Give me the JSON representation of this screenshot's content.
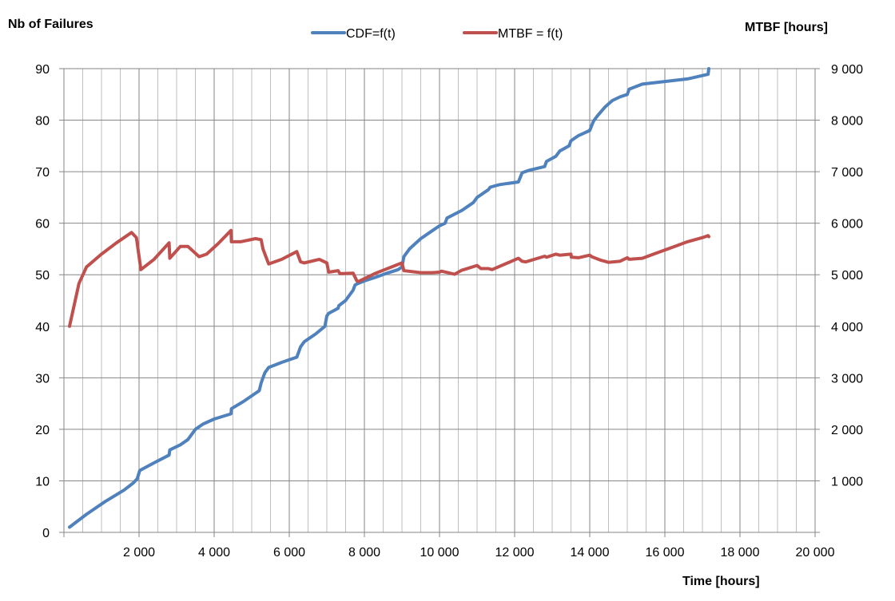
{
  "chart_data": {
    "type": "line",
    "title": "",
    "ylabel": "Nb of Failures",
    "y2label": "MTBF [hours]",
    "xlabel": "Time [hours]",
    "xlim": [
      0,
      20000
    ],
    "ylim": [
      0,
      90
    ],
    "y2lim": [
      0,
      9000
    ],
    "grid": true,
    "legend_position": "top",
    "x_ticks": [
      "2 000",
      "4 000",
      "6 000",
      "8 000",
      "10 000",
      "12 000",
      "14 000",
      "16 000",
      "18 000",
      "20 000"
    ],
    "y_ticks": [
      "0",
      "10",
      "20",
      "30",
      "40",
      "50",
      "60",
      "70",
      "80",
      "90"
    ],
    "y2_ticks": [
      "1 000",
      "2 000",
      "3 000",
      "4 000",
      "5 000",
      "6 000",
      "7 000",
      "8 000",
      "9 000"
    ],
    "series": [
      {
        "name": "CDF=f(t)",
        "axis": "left",
        "color": "#4F81BD",
        "x": [
          150,
          600,
          1100,
          1600,
          1850,
          1950,
          2020,
          2400,
          2800,
          2820,
          3100,
          3300,
          3500,
          3700,
          4000,
          4450,
          4460,
          4800,
          5200,
          5250,
          5300,
          5350,
          5450,
          5800,
          6200,
          6250,
          6300,
          6400,
          6700,
          6950,
          7000,
          7050,
          7300,
          7320,
          7500,
          7600,
          7700,
          7750,
          7800,
          8000,
          8300,
          8600,
          8900,
          9000,
          9050,
          9200,
          9500,
          9800,
          10000,
          10150,
          10200,
          10600,
          10900,
          11000,
          11300,
          11350,
          11600,
          12100,
          12200,
          12400,
          12800,
          12850,
          13100,
          13200,
          13450,
          13500,
          13700,
          14000,
          14100,
          14200,
          14400,
          14600,
          14800,
          15000,
          15050,
          15400,
          16000,
          16600,
          17150,
          17170
        ],
        "values": [
          1,
          3.5,
          6,
          8.2,
          9.6,
          10.4,
          12,
          13.5,
          15,
          16,
          17,
          18,
          20,
          21,
          22,
          23,
          24,
          25.5,
          27.5,
          29,
          30,
          31,
          32,
          33,
          34,
          35,
          36,
          37,
          38.5,
          40,
          42,
          42.5,
          43.5,
          44,
          45,
          46,
          47,
          48,
          48.2,
          48.8,
          49.5,
          50.3,
          51,
          51.5,
          53.5,
          55,
          57,
          58.5,
          59.5,
          60,
          61,
          62.5,
          64,
          65,
          66.5,
          67,
          67.5,
          68,
          69.8,
          70.3,
          71,
          72,
          73,
          74,
          75,
          76,
          77,
          78,
          79.8,
          80.8,
          82.5,
          83.8,
          84.5,
          85,
          86,
          87,
          87.5,
          88,
          88.9,
          90
        ]
      },
      {
        "name": "MTBF = f(t)",
        "axis": "right",
        "color": "#C0504D",
        "x": [
          150,
          400,
          600,
          1000,
          1400,
          1800,
          1930,
          2050,
          2400,
          2800,
          2820,
          3100,
          3300,
          3600,
          3800,
          4100,
          4450,
          4460,
          4700,
          5100,
          5250,
          5300,
          5450,
          5800,
          6200,
          6300,
          6400,
          6800,
          7000,
          7050,
          7300,
          7350,
          7700,
          7800,
          7850,
          8300,
          9000,
          9050,
          9500,
          9800,
          10000,
          10050,
          10400,
          10600,
          10650,
          11000,
          11100,
          11300,
          11400,
          12100,
          12200,
          12300,
          12800,
          12850,
          13100,
          13200,
          13500,
          13510,
          13700,
          14000,
          14050,
          14300,
          14500,
          14800,
          15000,
          15050,
          15400,
          15700,
          16300,
          16600,
          17000,
          17150,
          17170
        ],
        "values": [
          4000,
          4830,
          5150,
          5400,
          5620,
          5820,
          5720,
          5100,
          5300,
          5620,
          5320,
          5550,
          5550,
          5350,
          5400,
          5600,
          5860,
          5640,
          5640,
          5700,
          5680,
          5500,
          5210,
          5300,
          5450,
          5250,
          5230,
          5300,
          5230,
          5050,
          5080,
          5020,
          5030,
          4880,
          4870,
          5030,
          5230,
          5080,
          5040,
          5040,
          5050,
          5070,
          5010,
          5090,
          5100,
          5180,
          5120,
          5120,
          5100,
          5320,
          5260,
          5250,
          5360,
          5340,
          5400,
          5380,
          5400,
          5340,
          5330,
          5380,
          5350,
          5280,
          5240,
          5260,
          5330,
          5300,
          5320,
          5400,
          5560,
          5640,
          5720,
          5760,
          5740
        ]
      }
    ]
  },
  "legend": {
    "cdf_label": "CDF=f(t)",
    "mtbf_label": "MTBF = f(t)"
  },
  "axes": {
    "left_title": "Nb of Failures",
    "right_title": "MTBF [hours]",
    "bottom_title": "Time [hours]"
  }
}
